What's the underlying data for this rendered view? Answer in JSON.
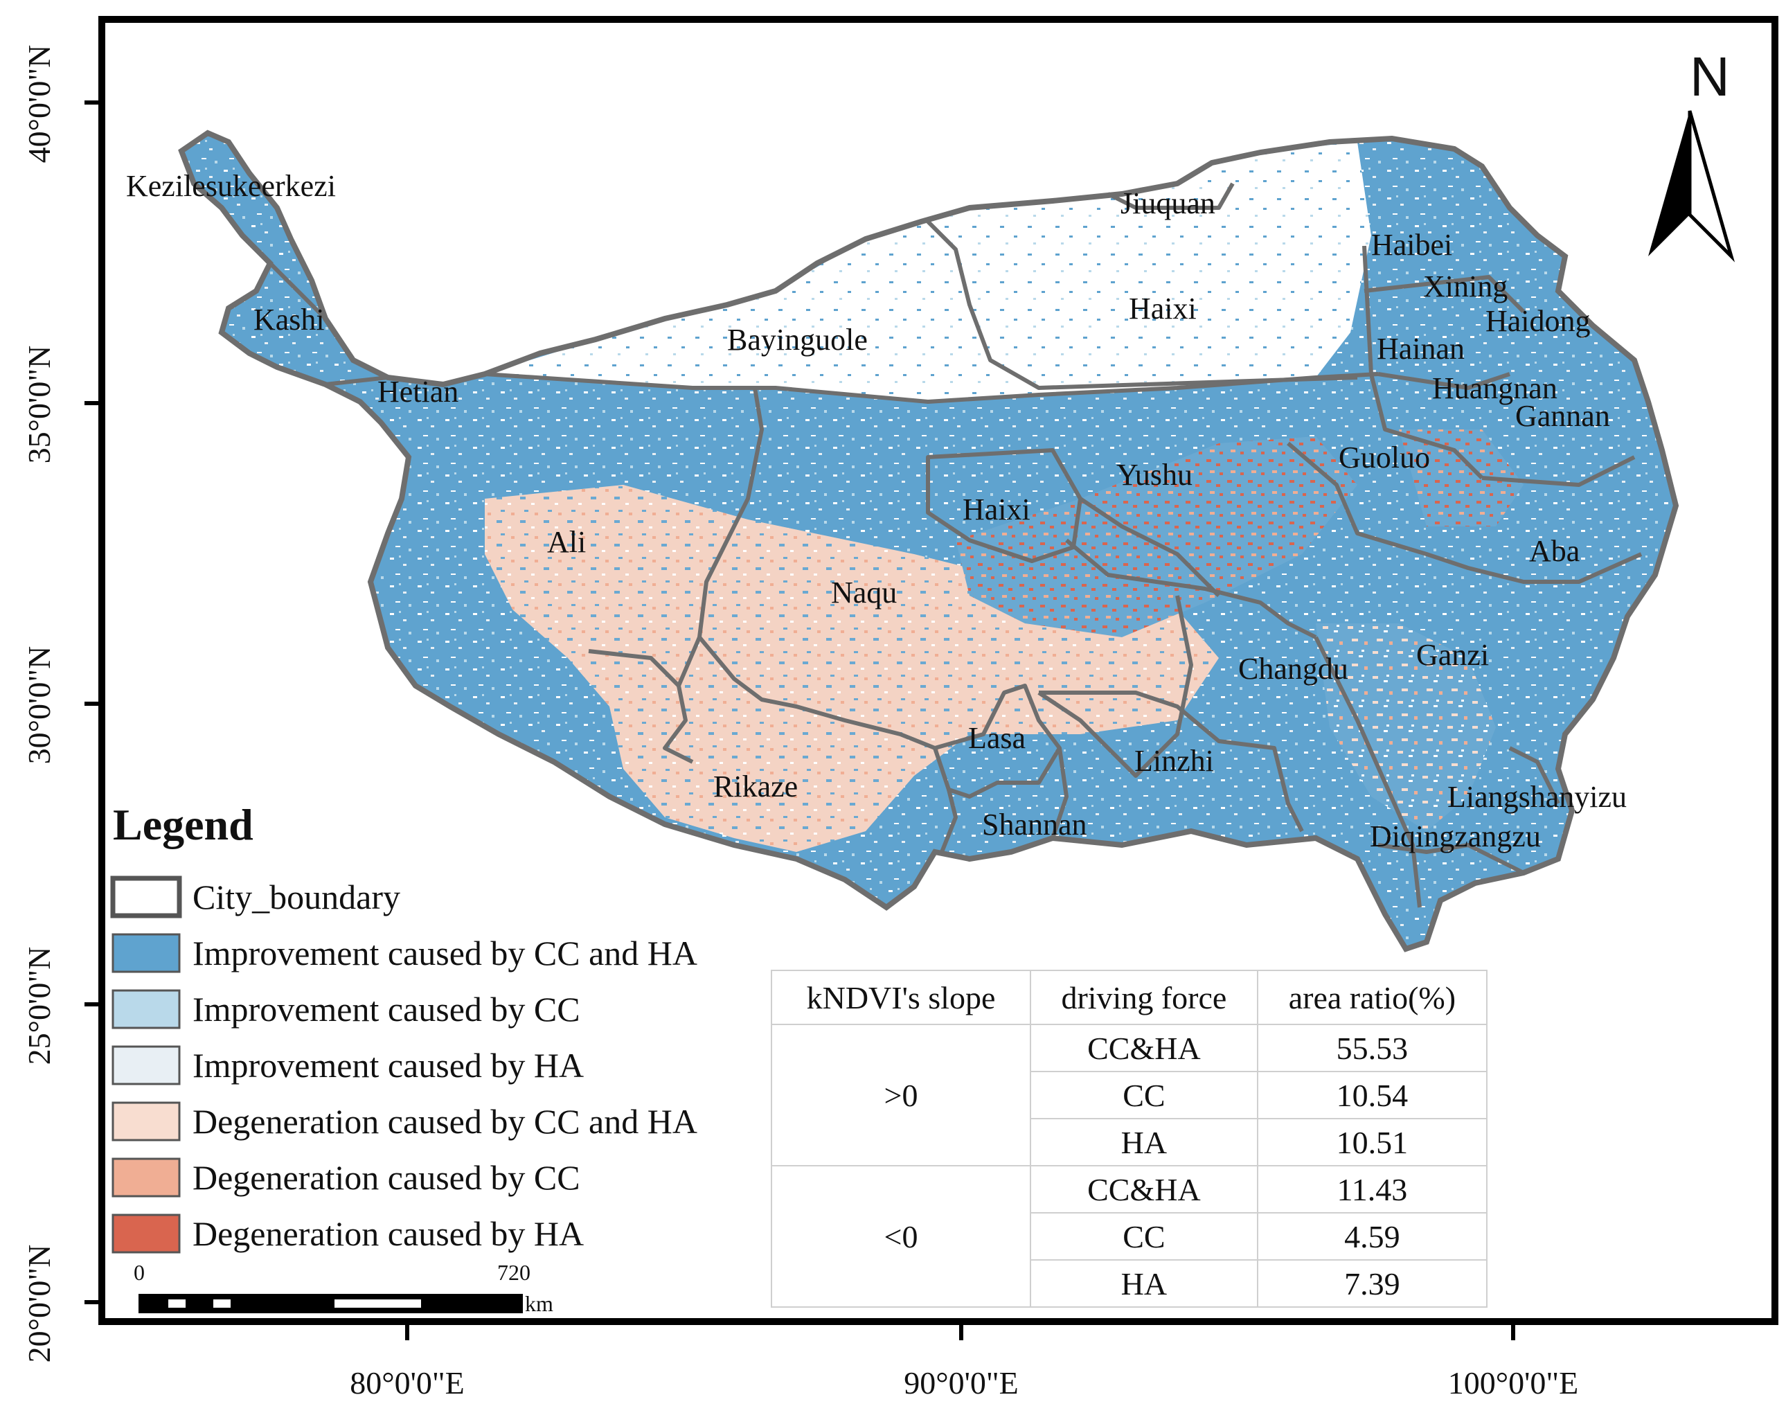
{
  "map": {
    "north_label": "N",
    "lat_ticks": [
      "40°0'0\"N",
      "35°0'0\"N",
      "30°0'0\"N",
      "25°0'0\"N",
      "20°0'0\"N"
    ],
    "lon_ticks": [
      "80°0'0\"E",
      "90°0'0\"E",
      "100°0'0\"E"
    ],
    "regions": {
      "kezilesukeerkezi": "Kezilesukeerkezi",
      "kashi": "Kashi",
      "hetian": "Hetian",
      "bayinguole": "Bayinguole",
      "jiuquan": "Jiuquan",
      "haixi_north": "Haixi",
      "haibei": "Haibei",
      "xining": "Xining",
      "haidong": "Haidong",
      "hainan": "Hainan",
      "huangnan": "Huangnan",
      "gannan": "Gannan",
      "guoluo": "Guoluo",
      "yushu": "Yushu",
      "haixi_south": "Haixi",
      "ali": "Ali",
      "naqu": "Naqu",
      "aba": "Aba",
      "changdu": "Changdu",
      "ganzi": "Ganzi",
      "lasa": "Lasa",
      "linzhi": "Linzhi",
      "rikaze": "Rikaze",
      "shannan": "Shannan",
      "liangshanyizu": "Liangshanyizu",
      "diqingzangzu": "Diqingzangzu"
    },
    "scale_bar": {
      "start": "0",
      "end": "720",
      "unit": "km"
    }
  },
  "legend": {
    "title": "Legend",
    "items": [
      {
        "label": "City_boundary",
        "color": "#ffffff",
        "border": "#555555"
      },
      {
        "label": "Improvement caused by CC and HA",
        "color": "#5fa3cf"
      },
      {
        "label": "Improvement caused by CC",
        "color": "#b9d9ea"
      },
      {
        "label": "Improvement caused by HA",
        "color": "#e8eff4"
      },
      {
        "label": "Degeneration caused by CC and HA",
        "color": "#f8ddd0"
      },
      {
        "label": "Degeneration caused by CC",
        "color": "#f0ae94"
      },
      {
        "label": "Degeneration caused by HA",
        "color": "#d9654f"
      }
    ]
  },
  "table": {
    "headers": [
      "kNDVI's slope",
      "driving force",
      "area ratio(%)"
    ],
    "groups": [
      {
        "slope": ">0",
        "rows": [
          {
            "force": "CC&HA",
            "ratio": "55.53"
          },
          {
            "force": "CC",
            "ratio": "10.54"
          },
          {
            "force": "HA",
            "ratio": "10.51"
          }
        ]
      },
      {
        "slope": "<0",
        "rows": [
          {
            "force": "CC&HA",
            "ratio": "11.43"
          },
          {
            "force": "CC",
            "ratio": "4.59"
          },
          {
            "force": "HA",
            "ratio": "7.39"
          }
        ]
      }
    ]
  }
}
